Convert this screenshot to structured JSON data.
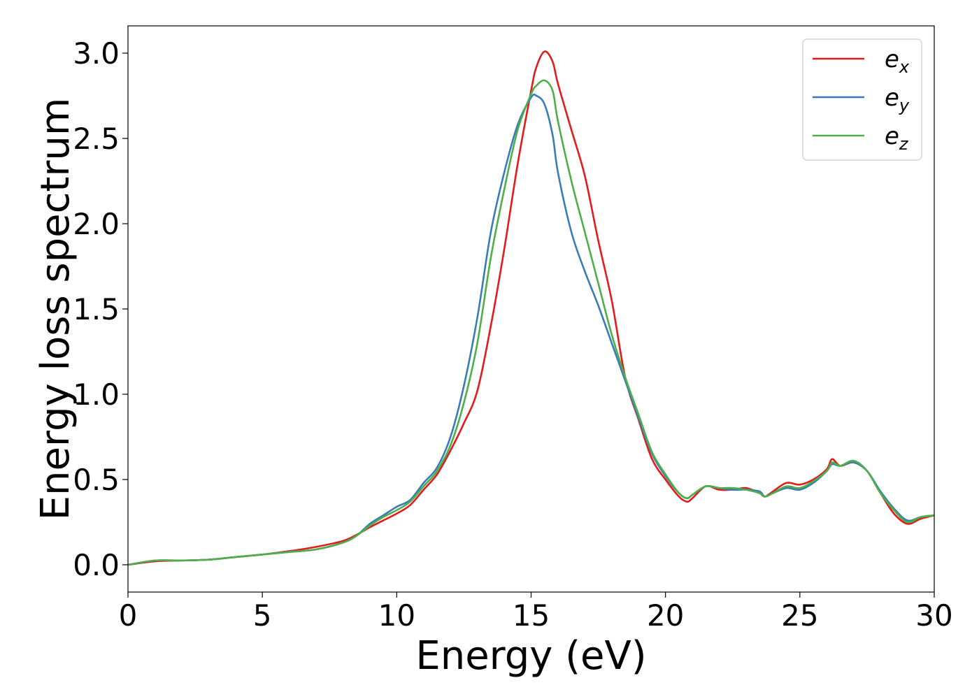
{
  "chart_data": {
    "type": "line",
    "xlabel": "Energy (eV)",
    "ylabel": "Energy loss spectrum",
    "xlim": [
      0,
      30
    ],
    "ylim": [
      -0.16,
      3.16
    ],
    "xticks": [
      0,
      5,
      10,
      15,
      20,
      25,
      30
    ],
    "xtick_labels": [
      "0",
      "5",
      "10",
      "15",
      "20",
      "25",
      "30"
    ],
    "yticks": [
      0.0,
      0.5,
      1.0,
      1.5,
      2.0,
      2.5,
      3.0
    ],
    "ytick_labels": [
      "0.0",
      "0.5",
      "1.0",
      "1.5",
      "2.0",
      "2.5",
      "3.0"
    ],
    "grid": false,
    "legend_position": "top-right",
    "series": [
      {
        "name": "e_x",
        "legend_base": "e",
        "legend_sub": "x",
        "color": "#e41a1c",
        "x": [
          0,
          1,
          2,
          3,
          4,
          5,
          6,
          7,
          8,
          8.5,
          9,
          9.5,
          10,
          10.5,
          11,
          11.5,
          12,
          12.5,
          13,
          13.5,
          14,
          14.5,
          15,
          15.2,
          15.5,
          15.8,
          16,
          16.5,
          17,
          17.5,
          18,
          18.5,
          19,
          19.5,
          20,
          20.5,
          20.8,
          21,
          21.5,
          22,
          22.5,
          23,
          23.5,
          23.7,
          24,
          24.5,
          25,
          25.5,
          26,
          26.2,
          26.5,
          27,
          27.5,
          28,
          28.5,
          29,
          29.5,
          30
        ],
        "y": [
          0.0,
          0.02,
          0.025,
          0.03,
          0.045,
          0.06,
          0.08,
          0.105,
          0.14,
          0.175,
          0.22,
          0.26,
          0.3,
          0.35,
          0.44,
          0.53,
          0.67,
          0.83,
          1.02,
          1.4,
          1.85,
          2.35,
          2.78,
          2.92,
          3.01,
          2.95,
          2.82,
          2.55,
          2.28,
          1.9,
          1.55,
          1.1,
          0.85,
          0.62,
          0.5,
          0.4,
          0.37,
          0.39,
          0.46,
          0.44,
          0.44,
          0.45,
          0.42,
          0.4,
          0.43,
          0.48,
          0.47,
          0.5,
          0.56,
          0.62,
          0.58,
          0.6,
          0.55,
          0.42,
          0.3,
          0.24,
          0.27,
          0.29
        ]
      },
      {
        "name": "e_y",
        "legend_base": "e",
        "legend_sub": "y",
        "color": "#377eb8",
        "x": [
          0,
          1,
          2,
          3,
          4,
          5,
          6,
          7,
          8,
          8.5,
          9,
          9.5,
          10,
          10.5,
          11,
          11.5,
          12,
          12.5,
          13,
          13.5,
          14,
          14.5,
          15,
          15.2,
          15.5,
          15.8,
          16,
          16.5,
          17,
          17.5,
          18,
          18.5,
          19,
          19.5,
          20,
          20.5,
          20.8,
          21,
          21.5,
          22,
          22.5,
          23,
          23.5,
          23.7,
          24,
          24.5,
          25,
          25.5,
          26,
          26.2,
          26.5,
          27,
          27.5,
          28,
          28.5,
          29,
          29.5,
          30
        ],
        "y": [
          0.0,
          0.025,
          0.025,
          0.03,
          0.045,
          0.06,
          0.075,
          0.09,
          0.13,
          0.17,
          0.24,
          0.29,
          0.34,
          0.38,
          0.48,
          0.57,
          0.75,
          1.05,
          1.45,
          1.95,
          2.3,
          2.58,
          2.74,
          2.75,
          2.7,
          2.52,
          2.3,
          1.95,
          1.72,
          1.52,
          1.3,
          1.08,
          0.86,
          0.65,
          0.52,
          0.42,
          0.39,
          0.41,
          0.46,
          0.45,
          0.44,
          0.44,
          0.43,
          0.4,
          0.42,
          0.45,
          0.44,
          0.48,
          0.55,
          0.59,
          0.58,
          0.6,
          0.55,
          0.43,
          0.33,
          0.26,
          0.28,
          0.29
        ]
      },
      {
        "name": "e_z",
        "legend_base": "e",
        "legend_sub": "z",
        "color": "#4daf4a",
        "x": [
          0,
          1,
          2,
          3,
          4,
          5,
          6,
          7,
          8,
          8.5,
          9,
          9.5,
          10,
          10.5,
          11,
          11.5,
          12,
          12.5,
          13,
          13.5,
          14,
          14.5,
          15,
          15.2,
          15.5,
          15.8,
          16,
          16.5,
          17,
          17.5,
          18,
          18.5,
          19,
          19.5,
          20,
          20.5,
          20.8,
          21,
          21.5,
          22,
          22.5,
          23,
          23.5,
          23.7,
          24,
          24.5,
          25,
          25.5,
          26,
          26.2,
          26.5,
          27,
          27.5,
          28,
          28.5,
          29,
          29.5,
          30
        ],
        "y": [
          0.0,
          0.025,
          0.025,
          0.03,
          0.045,
          0.06,
          0.075,
          0.09,
          0.13,
          0.17,
          0.23,
          0.28,
          0.32,
          0.37,
          0.46,
          0.55,
          0.7,
          0.95,
          1.3,
          1.8,
          2.2,
          2.55,
          2.76,
          2.81,
          2.84,
          2.78,
          2.6,
          2.25,
          1.95,
          1.65,
          1.35,
          1.1,
          0.88,
          0.66,
          0.53,
          0.42,
          0.39,
          0.41,
          0.46,
          0.45,
          0.45,
          0.44,
          0.42,
          0.4,
          0.42,
          0.46,
          0.45,
          0.49,
          0.55,
          0.6,
          0.58,
          0.61,
          0.55,
          0.42,
          0.32,
          0.25,
          0.28,
          0.29
        ]
      }
    ]
  }
}
